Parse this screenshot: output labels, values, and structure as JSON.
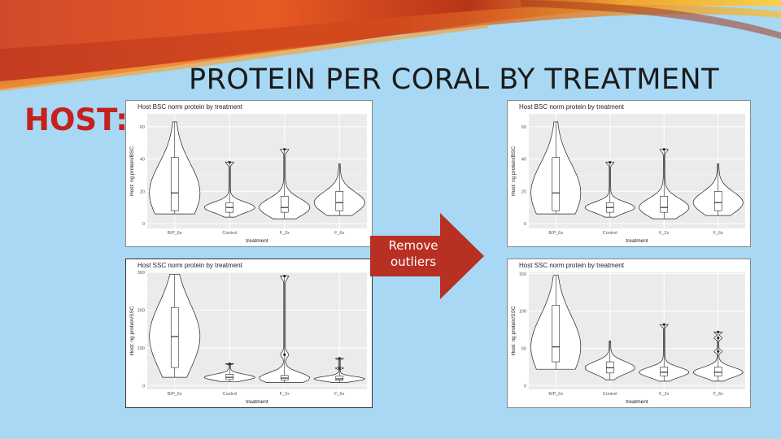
{
  "slide": {
    "title": "PROTEIN PER CORAL BY TREATMENT",
    "host_label": "HOST:"
  },
  "arrow": {
    "label_line1": "Remove",
    "label_line2": "outliers",
    "color": "#b82f23"
  },
  "colors": {
    "background": "#a8d8f3",
    "panel": "#ebebeb",
    "title_red": "#c5211d"
  },
  "chart_data": [
    {
      "type": "violin",
      "title": "Host BSC norm protein by treatment",
      "xlabel": "treatment",
      "ylabel": "Host: ng protein/BSC",
      "categories": [
        "B/P_6x",
        "Control",
        "F_2x",
        "F_6x"
      ],
      "ylim": [
        -3,
        68
      ],
      "yticks": [
        0,
        20,
        40,
        60
      ],
      "grid": true,
      "series": [
        {
          "category": "B/P_6x",
          "min": 6,
          "q1": 8,
          "median": 19,
          "q3": 41,
          "max": 63,
          "outliers": []
        },
        {
          "category": "Control",
          "min": 4,
          "q1": 7,
          "median": 10,
          "q3": 13,
          "max": 38,
          "outliers": [
            38
          ]
        },
        {
          "category": "F_2x",
          "min": 3,
          "q1": 7,
          "median": 10,
          "q3": 17,
          "max": 46,
          "outliers": [
            46
          ]
        },
        {
          "category": "F_6x",
          "min": 5,
          "q1": 8,
          "median": 13,
          "q3": 20,
          "max": 37,
          "outliers": []
        }
      ]
    },
    {
      "type": "violin",
      "title": "Host SSC norm protein by treatment",
      "xlabel": "treatment",
      "ylabel": "Host: ng protein/SSC",
      "categories": [
        "B/P_6x",
        "Control",
        "F_2x",
        "F_6x"
      ],
      "ylim": [
        -10,
        300
      ],
      "yticks": [
        0,
        100,
        200,
        300
      ],
      "grid": true,
      "series": [
        {
          "category": "B/P_6x",
          "min": 22,
          "q1": 48,
          "median": 130,
          "q3": 207,
          "max": 295,
          "outliers": []
        },
        {
          "category": "Control",
          "min": 10,
          "q1": 16,
          "median": 22,
          "q3": 30,
          "max": 58,
          "outliers": [
            58
          ]
        },
        {
          "category": "F_2x",
          "min": 8,
          "q1": 15,
          "median": 20,
          "q3": 27,
          "max": 290,
          "outliers": [
            82,
            290
          ]
        },
        {
          "category": "F_6x",
          "min": 8,
          "q1": 14,
          "median": 18,
          "q3": 25,
          "max": 72,
          "outliers": [
            46,
            72
          ]
        }
      ]
    },
    {
      "type": "violin",
      "title": "Host BSC norm protein by treatment",
      "xlabel": "treatment",
      "ylabel": "Host: ng protein/BSC",
      "categories": [
        "B/P_6x",
        "Control",
        "F_2x",
        "F_6x"
      ],
      "ylim": [
        -3,
        68
      ],
      "yticks": [
        0,
        20,
        40,
        60
      ],
      "grid": true,
      "series": [
        {
          "category": "B/P_6x",
          "min": 6,
          "q1": 8,
          "median": 19,
          "q3": 41,
          "max": 63,
          "outliers": []
        },
        {
          "category": "Control",
          "min": 4,
          "q1": 7,
          "median": 10,
          "q3": 13,
          "max": 38,
          "outliers": [
            38
          ]
        },
        {
          "category": "F_2x",
          "min": 3,
          "q1": 7,
          "median": 10,
          "q3": 17,
          "max": 46,
          "outliers": [
            46
          ]
        },
        {
          "category": "F_6x",
          "min": 5,
          "q1": 8,
          "median": 13,
          "q3": 20,
          "max": 37,
          "outliers": []
        }
      ]
    },
    {
      "type": "violin",
      "title": "Host SSC norm protein by treatment",
      "xlabel": "treatment",
      "ylabel": "Host: ng protein/SSC",
      "categories": [
        "B/P_6x",
        "Control",
        "F_2x",
        "F_6x"
      ],
      "ylim": [
        -5,
        152
      ],
      "yticks": [
        0,
        50,
        100,
        150
      ],
      "grid": true,
      "series": [
        {
          "category": "B/P_6x",
          "min": 22,
          "q1": 32,
          "median": 52,
          "q3": 108,
          "max": 148,
          "outliers": []
        },
        {
          "category": "Control",
          "min": 8,
          "q1": 17,
          "median": 24,
          "q3": 32,
          "max": 60,
          "outliers": []
        },
        {
          "category": "F_2x",
          "min": 6,
          "q1": 13,
          "median": 18,
          "q3": 25,
          "max": 82,
          "outliers": [
            82
          ]
        },
        {
          "category": "F_6x",
          "min": 6,
          "q1": 13,
          "median": 18,
          "q3": 25,
          "max": 72,
          "outliers": [
            46,
            64,
            72
          ]
        }
      ]
    }
  ]
}
